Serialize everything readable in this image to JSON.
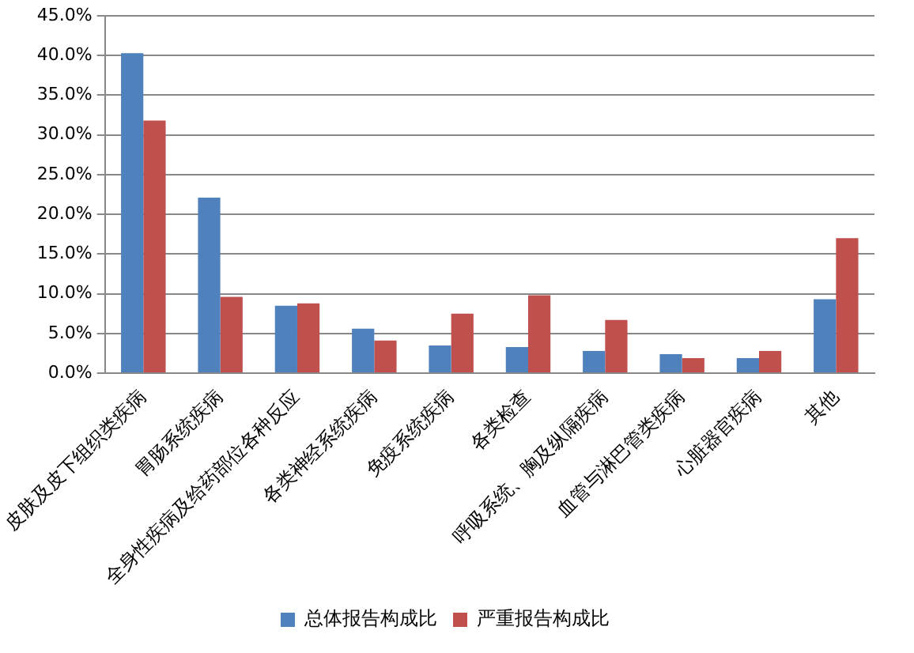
{
  "chart_data": {
    "type": "bar",
    "categories": [
      "皮肤及皮下组织类疾病",
      "胃肠系统疾病",
      "全身性疾病及给药部位各种反应",
      "各类神经系统疾病",
      "免疫系统疾病",
      "各类检查",
      "呼吸系统、胸及纵隔疾病",
      "血管与淋巴管类疾病",
      "心脏器官疾病",
      "其他"
    ],
    "series": [
      {
        "name": "总体报告构成比",
        "color": "#4f81bd",
        "values": [
          40.3,
          22.1,
          8.5,
          5.6,
          3.5,
          3.3,
          2.8,
          2.4,
          1.9,
          9.3
        ]
      },
      {
        "name": "严重报告构成比",
        "color": "#c0504d",
        "values": [
          31.8,
          9.6,
          8.8,
          4.1,
          7.5,
          9.8,
          6.7,
          1.9,
          2.8,
          17.0
        ]
      }
    ],
    "ylim": [
      0,
      45
    ],
    "yticks": [
      {
        "value": 0,
        "label": "0.0%"
      },
      {
        "value": 5,
        "label": "5.0%"
      },
      {
        "value": 10,
        "label": "10.0%"
      },
      {
        "value": 15,
        "label": "15.0%"
      },
      {
        "value": 20,
        "label": "20.0%"
      },
      {
        "value": 25,
        "label": "25.0%"
      },
      {
        "value": 30,
        "label": "30.0%"
      },
      {
        "value": 35,
        "label": "35.0%"
      },
      {
        "value": 40,
        "label": "40.0%"
      },
      {
        "value": 45,
        "label": "45.0%"
      }
    ],
    "grid": "y",
    "legend": "bottom"
  }
}
